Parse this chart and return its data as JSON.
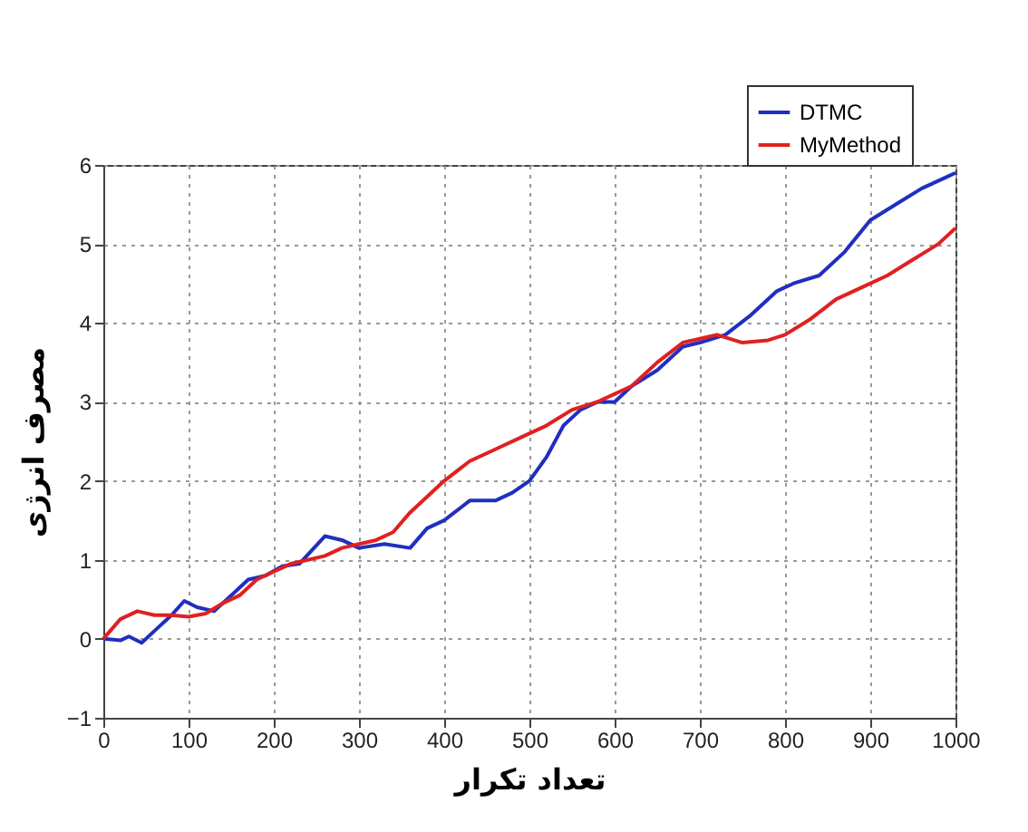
{
  "chart_data": {
    "type": "line",
    "xlabel": "تعداد تکرار",
    "ylabel": "مصرف انرژی",
    "xlim": [
      0,
      1000
    ],
    "xticks": [
      0,
      100,
      200,
      300,
      400,
      500,
      600,
      700,
      800,
      900,
      1000
    ],
    "ylim": [
      -1,
      6
    ],
    "yticks": [
      -1,
      0,
      1,
      2,
      3,
      4,
      5,
      6
    ],
    "grid": true,
    "legend": "top right",
    "line_style": "solid",
    "series": [
      {
        "name": "DTMC",
        "color": "#1f2fc0",
        "x": [
          0,
          20,
          30,
          45,
          60,
          80,
          95,
          110,
          130,
          150,
          170,
          190,
          210,
          230,
          260,
          280,
          300,
          330,
          360,
          380,
          400,
          430,
          460,
          480,
          500,
          520,
          540,
          560,
          580,
          600,
          620,
          650,
          680,
          700,
          730,
          760,
          790,
          810,
          840,
          870,
          900,
          930,
          960,
          990,
          1000
        ],
        "values": [
          0,
          -0.02,
          0.03,
          -0.05,
          0.1,
          0.3,
          0.48,
          0.4,
          0.35,
          0.55,
          0.75,
          0.8,
          0.92,
          0.95,
          1.3,
          1.25,
          1.15,
          1.2,
          1.15,
          1.4,
          1.5,
          1.75,
          1.75,
          1.85,
          2.0,
          2.3,
          2.7,
          2.9,
          3.0,
          3.0,
          3.2,
          3.4,
          3.7,
          3.75,
          3.85,
          4.1,
          4.4,
          4.5,
          4.6,
          4.9,
          5.3,
          5.5,
          5.7,
          5.85,
          5.9
        ]
      },
      {
        "name": "MyMethod",
        "color": "#e02020",
        "x": [
          0,
          20,
          40,
          60,
          80,
          100,
          120,
          140,
          160,
          180,
          200,
          220,
          240,
          260,
          280,
          300,
          320,
          340,
          360,
          380,
          400,
          430,
          460,
          490,
          520,
          550,
          580,
          620,
          650,
          680,
          700,
          720,
          750,
          780,
          800,
          830,
          860,
          890,
          920,
          950,
          980,
          1000
        ],
        "values": [
          0,
          0.25,
          0.35,
          0.3,
          0.3,
          0.28,
          0.32,
          0.45,
          0.55,
          0.75,
          0.85,
          0.95,
          1.0,
          1.05,
          1.15,
          1.2,
          1.25,
          1.35,
          1.6,
          1.8,
          2.0,
          2.25,
          2.4,
          2.55,
          2.7,
          2.9,
          3.0,
          3.2,
          3.5,
          3.75,
          3.8,
          3.85,
          3.75,
          3.78,
          3.85,
          4.05,
          4.3,
          4.45,
          4.6,
          4.8,
          5.0,
          5.2
        ]
      }
    ]
  }
}
